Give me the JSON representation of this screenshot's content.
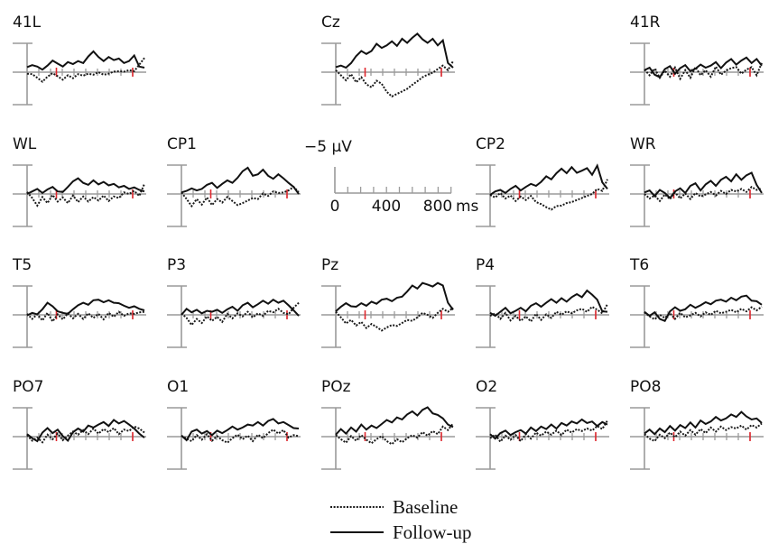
{
  "chart_data": {
    "type": "line",
    "scale_bar": {
      "amplitude_label": "−5 μV",
      "time_labels": [
        "0",
        "400",
        "800"
      ],
      "time_unit": "ms",
      "time_range_ms": [
        0,
        1000
      ],
      "tick_step_ms": 100
    },
    "series": [
      {
        "name": "Baseline",
        "style": "dotted",
        "color": "#1a1a1a"
      },
      {
        "name": "Follow-up",
        "style": "solid",
        "color": "#111111"
      }
    ],
    "marker_times_ms": [
      250,
      900
    ],
    "marker_color": "#e0282e",
    "channels": [
      {
        "name": "41L",
        "baseline": [
          -0.3,
          -0.4,
          -1.1,
          -1.9,
          -0.9,
          -0.2,
          -0.8,
          -1.5,
          -0.6,
          -1.2,
          -0.4,
          -0.7,
          -0.3,
          -0.5,
          0.0,
          -0.5,
          -0.3,
          0.1,
          0.2,
          0.1,
          0.4,
          0.2,
          1.5,
          2.8
        ],
        "followup": [
          1.0,
          1.4,
          1.1,
          0.5,
          1.3,
          2.3,
          1.7,
          1.1,
          2.0,
          1.6,
          2.2,
          1.8,
          3.1,
          4.1,
          3.0,
          2.2,
          3.0,
          2.4,
          2.7,
          1.8,
          2.2,
          3.3,
          1.1,
          0.9
        ]
      },
      {
        "name": "Cz",
        "baseline": [
          0.4,
          -0.6,
          -1.6,
          -0.4,
          -2.0,
          -1.0,
          -2.4,
          -3.0,
          -1.7,
          -2.3,
          -3.9,
          -4.8,
          -4.3,
          -3.8,
          -3.3,
          -2.5,
          -1.8,
          -1.0,
          -0.5,
          -0.1,
          0.6,
          1.3,
          0.4,
          2.2
        ],
        "followup": [
          1.0,
          1.3,
          0.9,
          1.8,
          3.2,
          4.2,
          3.6,
          4.2,
          5.6,
          4.8,
          5.3,
          6.1,
          5.2,
          6.6,
          5.8,
          6.8,
          7.6,
          6.5,
          5.8,
          6.6,
          5.3,
          6.3,
          1.8,
          0.9
        ]
      },
      {
        "name": "41R",
        "baseline": [
          0.5,
          -0.6,
          0.7,
          -1.1,
          0.3,
          -0.9,
          0.9,
          -1.3,
          0.4,
          -1.1,
          1.0,
          -0.6,
          0.4,
          -0.9,
          1.1,
          -0.5,
          0.3,
          0.8,
          1.0,
          -0.3,
          0.5,
          1.0,
          -0.6,
          1.8
        ],
        "followup": [
          0.4,
          0.9,
          -0.5,
          -1.0,
          0.6,
          1.2,
          -0.3,
          0.8,
          1.4,
          0.2,
          0.7,
          1.5,
          0.9,
          1.3,
          2.0,
          0.8,
          1.9,
          2.6,
          1.5,
          2.3,
          2.9,
          1.8,
          2.6,
          1.3
        ]
      },
      {
        "name": "WL",
        "baseline": [
          0.4,
          -0.8,
          -2.3,
          -0.6,
          -1.8,
          -0.2,
          -1.5,
          -0.7,
          -1.8,
          -0.3,
          -1.6,
          -0.5,
          -1.5,
          -0.6,
          -1.3,
          -0.3,
          -1.4,
          -0.5,
          -0.8,
          0.3,
          0.0,
          0.6,
          -0.4,
          2.0
        ],
        "followup": [
          0.0,
          0.5,
          1.0,
          0.2,
          0.9,
          1.4,
          0.5,
          0.4,
          1.4,
          2.5,
          3.1,
          2.2,
          1.8,
          2.7,
          1.9,
          2.4,
          1.7,
          2.0,
          1.3,
          1.6,
          1.0,
          1.3,
          0.8,
          0.5
        ]
      },
      {
        "name": "CP1",
        "baseline": [
          0.3,
          -1.0,
          -2.4,
          -1.0,
          -2.1,
          -0.7,
          -2.2,
          -1.0,
          -1.7,
          -0.6,
          -1.4,
          -2.2,
          -1.8,
          -1.3,
          -0.8,
          -1.0,
          0.1,
          -0.4,
          0.5,
          0.2,
          0.3,
          0.7,
          1.4,
          0.4
        ],
        "followup": [
          0.3,
          0.6,
          1.1,
          0.7,
          1.0,
          1.8,
          2.2,
          1.2,
          2.0,
          2.7,
          2.2,
          3.2,
          4.5,
          5.2,
          3.6,
          3.9,
          4.8,
          3.6,
          3.0,
          3.9,
          3.1,
          2.2,
          1.4,
          0.0
        ]
      },
      {
        "name": "CP2",
        "baseline": [
          -0.2,
          -0.7,
          0.2,
          -0.9,
          -0.3,
          -1.4,
          -0.5,
          -1.2,
          -0.4,
          -1.6,
          -2.0,
          -2.6,
          -3.1,
          -2.4,
          -2.3,
          -1.8,
          -1.6,
          -1.2,
          -0.8,
          -0.4,
          0.0,
          1.0,
          0.6,
          2.9
        ],
        "followup": [
          -0.2,
          0.5,
          0.8,
          0.2,
          1.0,
          1.6,
          0.7,
          1.4,
          2.0,
          1.6,
          2.4,
          3.5,
          2.9,
          4.1,
          5.0,
          4.1,
          5.3,
          4.2,
          4.6,
          5.1,
          3.8,
          5.6,
          2.3,
          1.0
        ]
      },
      {
        "name": "WR",
        "baseline": [
          0.0,
          -0.9,
          -0.3,
          -1.4,
          -0.1,
          -1.0,
          0.3,
          -0.9,
          0.1,
          -1.0,
          0.2,
          -0.5,
          -0.1,
          0.4,
          -0.3,
          0.6,
          0.0,
          0.8,
          0.5,
          1.0,
          0.4,
          1.4,
          0.8,
          1.1
        ],
        "followup": [
          0.3,
          0.7,
          -0.4,
          0.8,
          0.2,
          -0.8,
          0.5,
          1.1,
          0.2,
          1.6,
          2.1,
          0.7,
          1.9,
          2.6,
          1.6,
          2.8,
          3.4,
          2.5,
          3.9,
          2.8,
          3.7,
          4.2,
          1.8,
          0.2
        ]
      },
      {
        "name": "T5",
        "baseline": [
          0.2,
          -0.8,
          0.1,
          -1.1,
          0.4,
          -1.3,
          0.1,
          -0.9,
          0.3,
          -0.7,
          0.2,
          -0.8,
          0.3,
          -0.6,
          0.2,
          -0.9,
          0.4,
          -0.4,
          0.6,
          -0.2,
          0.3,
          0.2,
          0.5,
          0.6
        ],
        "followup": [
          -0.1,
          0.4,
          0.1,
          1.1,
          2.4,
          1.7,
          0.7,
          0.4,
          0.2,
          1.1,
          1.9,
          2.4,
          2.0,
          2.9,
          3.0,
          2.5,
          2.9,
          2.4,
          2.3,
          1.8,
          1.4,
          1.7,
          1.2,
          0.9
        ]
      },
      {
        "name": "P3",
        "baseline": [
          0.3,
          -0.6,
          -2.0,
          -0.8,
          -1.6,
          -0.3,
          -1.2,
          -0.4,
          -1.4,
          0.2,
          -0.7,
          0.3,
          -0.3,
          0.6,
          -0.5,
          0.3,
          -0.2,
          0.8,
          0.5,
          1.2,
          0.4,
          0.1,
          1.4,
          2.4
        ],
        "followup": [
          0.0,
          1.2,
          0.5,
          1.0,
          0.3,
          0.8,
          0.6,
          1.0,
          0.4,
          1.1,
          1.6,
          0.8,
          1.9,
          2.4,
          1.5,
          2.1,
          2.8,
          2.2,
          3.0,
          2.4,
          2.8,
          1.9,
          0.9,
          -0.2
        ]
      },
      {
        "name": "Pz",
        "baseline": [
          0.6,
          -0.5,
          -1.7,
          -1.0,
          -2.1,
          -1.4,
          -2.6,
          -1.8,
          -2.4,
          -3.1,
          -2.5,
          -2.0,
          -2.2,
          -1.6,
          -1.0,
          -1.2,
          -0.5,
          0.4,
          0.0,
          -0.6,
          0.4,
          1.2,
          0.6,
          1.4
        ],
        "followup": [
          0.7,
          1.6,
          2.3,
          1.7,
          1.6,
          2.3,
          1.8,
          2.6,
          2.2,
          3.0,
          3.2,
          2.7,
          3.4,
          3.6,
          4.6,
          5.8,
          5.2,
          6.3,
          6.0,
          5.6,
          6.3,
          5.8,
          2.4,
          1.0
        ]
      },
      {
        "name": "P4",
        "baseline": [
          -0.2,
          0.3,
          -0.8,
          0.4,
          -1.1,
          -0.2,
          -1.2,
          -0.3,
          -1.3,
          0.2,
          -1.0,
          0.1,
          -0.6,
          0.6,
          0.0,
          0.7,
          0.3,
          0.9,
          1.2,
          0.6,
          1.6,
          1.0,
          0.3,
          2.1
        ],
        "followup": [
          0.4,
          -0.2,
          0.6,
          1.4,
          0.3,
          0.8,
          1.4,
          0.7,
          1.8,
          2.3,
          1.6,
          2.4,
          3.1,
          2.4,
          3.3,
          2.6,
          3.5,
          4.1,
          3.5,
          4.8,
          4.0,
          3.0,
          0.7,
          0.6
        ]
      },
      {
        "name": "T6",
        "baseline": [
          0.5,
          -0.3,
          -0.9,
          0.0,
          -0.6,
          0.3,
          -0.8,
          0.4,
          -0.5,
          -0.1,
          0.4,
          -0.3,
          0.5,
          0.0,
          0.8,
          0.3,
          0.6,
          1.0,
          0.5,
          1.2,
          0.7,
          1.5,
          0.9,
          1.6
        ],
        "followup": [
          0.6,
          -0.2,
          0.5,
          -0.8,
          -1.2,
          0.7,
          1.5,
          0.8,
          1.1,
          2.0,
          1.4,
          1.9,
          2.5,
          2.1,
          2.8,
          3.0,
          2.6,
          3.4,
          2.9,
          3.6,
          3.8,
          2.8,
          2.7,
          2.0
        ]
      },
      {
        "name": "PO7",
        "baseline": [
          0.3,
          -0.8,
          -0.2,
          -1.1,
          0.4,
          -0.5,
          0.6,
          -0.7,
          0.2,
          1.0,
          0.4,
          1.3,
          0.5,
          1.6,
          0.6,
          1.5,
          0.9,
          1.7,
          0.5,
          1.4,
          1.1,
          2.0,
          1.6,
          0.8
        ],
        "followup": [
          0.5,
          -0.3,
          -0.9,
          0.8,
          1.7,
          0.7,
          1.4,
          0.1,
          -0.8,
          0.9,
          1.6,
          1.0,
          2.2,
          1.8,
          2.4,
          2.9,
          2.1,
          3.3,
          2.6,
          3.1,
          2.4,
          1.6,
          0.6,
          -0.2
        ]
      },
      {
        "name": "O1",
        "baseline": [
          0.2,
          -0.4,
          -0.9,
          0.3,
          -0.6,
          0.5,
          -0.8,
          0.1,
          -0.7,
          -1.2,
          -0.3,
          0.4,
          -0.5,
          0.2,
          -0.9,
          0.4,
          -0.3,
          0.7,
          1.4,
          0.6,
          1.3,
          -0.2,
          0.3,
          0.1
        ],
        "followup": [
          0.2,
          -0.7,
          1.0,
          1.4,
          0.6,
          1.1,
          0.3,
          1.2,
          0.7,
          1.3,
          2.0,
          1.4,
          1.8,
          2.4,
          2.2,
          2.9,
          2.2,
          3.1,
          3.5,
          2.6,
          2.9,
          2.3,
          1.7,
          1.6
        ]
      },
      {
        "name": "POz",
        "baseline": [
          0.3,
          -0.5,
          -1.2,
          0.1,
          -0.8,
          0.3,
          -0.6,
          -1.3,
          -0.5,
          0.1,
          -0.9,
          -1.5,
          -0.5,
          -1.1,
          -0.3,
          0.3,
          -0.2,
          0.9,
          0.2,
          1.1,
          0.5,
          2.0,
          1.3,
          2.6
        ],
        "followup": [
          0.4,
          1.5,
          0.6,
          1.8,
          1.0,
          2.4,
          1.4,
          2.2,
          1.7,
          2.5,
          3.3,
          2.8,
          3.8,
          3.4,
          4.4,
          5.0,
          4.2,
          5.3,
          5.8,
          4.6,
          4.3,
          3.6,
          2.4,
          1.9
        ]
      },
      {
        "name": "O2",
        "baseline": [
          -0.3,
          0.4,
          -1.0,
          0.2,
          -0.6,
          0.3,
          -0.9,
          0.5,
          -0.4,
          0.8,
          0.2,
          1.0,
          0.4,
          1.2,
          0.3,
          1.4,
          0.8,
          1.5,
          1.1,
          1.6,
          1.2,
          2.1,
          1.5,
          3.2
        ],
        "followup": [
          0.5,
          -0.4,
          0.7,
          1.2,
          0.3,
          0.9,
          1.3,
          0.6,
          1.8,
          1.1,
          2.0,
          1.5,
          2.4,
          1.6,
          2.7,
          2.2,
          3.0,
          2.6,
          3.4,
          2.7,
          3.0,
          2.1,
          2.9,
          2.4
        ]
      },
      {
        "name": "PO8",
        "baseline": [
          0.5,
          -0.4,
          -0.9,
          0.4,
          -0.3,
          0.8,
          -0.1,
          1.0,
          0.2,
          1.3,
          0.4,
          1.5,
          0.7,
          1.8,
          1.0,
          2.0,
          1.3,
          1.9,
          1.6,
          2.2,
          1.4,
          2.3,
          1.8,
          2.6
        ],
        "followup": [
          0.6,
          1.4,
          0.5,
          1.6,
          0.9,
          2.1,
          1.2,
          2.3,
          1.7,
          2.8,
          1.8,
          3.2,
          2.5,
          3.0,
          3.9,
          3.2,
          3.6,
          4.4,
          3.9,
          4.9,
          4.0,
          3.4,
          3.6,
          2.7
        ]
      }
    ]
  }
}
